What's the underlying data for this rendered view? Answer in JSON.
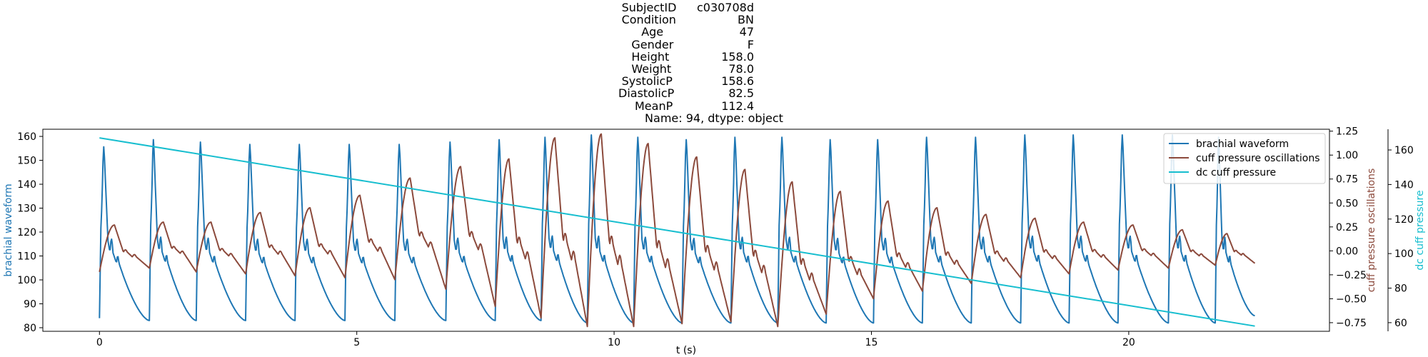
{
  "title_lines": [
    {
      "key": "SubjectID",
      "value": "c030708d"
    },
    {
      "key": "Condition",
      "value": "BN"
    },
    {
      "key": "Age",
      "value": "47"
    },
    {
      "key": "Gender",
      "value": "F"
    },
    {
      "key": "Height",
      "value": "158.0"
    },
    {
      "key": "Weight",
      "value": "78.0"
    },
    {
      "key": "SystolicP",
      "value": "158.6"
    },
    {
      "key": "DiastolicP",
      "value": "82.5"
    },
    {
      "key": "MeanP",
      "value": "112.4"
    }
  ],
  "title_footer": "Name: 94, dtype: object",
  "colors": {
    "brachial": "#1f77b4",
    "cuff_osc": "#8c4a3c",
    "dc_cuff": "#17becf",
    "axis": "#000000"
  },
  "chart_data": {
    "type": "line",
    "xlabel": "t (s)",
    "xlim": [
      -1.1,
      23.9
    ],
    "x_ticks": [
      0,
      5,
      10,
      15,
      20
    ],
    "legend": {
      "placement": "top-right",
      "entries": [
        "brachial waveform",
        "cuff pressure oscillations",
        "dc cuff pressure"
      ]
    },
    "grid": false,
    "axes": [
      {
        "id": "left",
        "label": "brachial waveform",
        "ylim": [
          78.5,
          163
        ],
        "ticks": [
          80,
          90,
          100,
          110,
          120,
          130,
          140,
          150,
          160
        ]
      },
      {
        "id": "right1",
        "label": "cuff pressure oscillations",
        "ylim": [
          -0.84,
          1.27
        ],
        "ticks": [
          -0.75,
          -0.5,
          -0.25,
          0.0,
          0.25,
          0.5,
          0.75,
          1.0,
          1.25
        ],
        "tick_labels": [
          "−0.75",
          "−0.50",
          "−0.25",
          "0.00",
          "0.25",
          "0.50",
          "0.75",
          "1.00",
          "1.25"
        ]
      },
      {
        "id": "right2",
        "label": "dc cuff pressure",
        "ylim": [
          55,
          172
        ],
        "ticks": [
          60,
          80,
          100,
          120,
          140,
          160
        ]
      }
    ],
    "series": [
      {
        "name": "brachial waveform",
        "axis": "left",
        "beat_times": [
          0.0,
          0.97,
          1.88,
          2.84,
          3.8,
          4.77,
          5.74,
          6.73,
          7.69,
          8.58,
          9.48,
          10.38,
          11.32,
          12.27,
          13.18,
          14.12,
          15.04,
          15.99,
          16.94,
          17.9,
          18.84,
          19.79,
          20.77,
          21.68,
          22.45
        ],
        "beat_peaks": [
          156,
          159,
          158,
          157,
          157,
          157,
          157,
          158,
          159,
          160,
          161,
          160,
          159,
          160,
          160,
          159,
          159,
          160,
          160,
          161,
          161,
          161,
          161,
          160
        ],
        "beat_troughs": [
          84,
          83,
          83,
          83,
          83,
          83,
          83,
          83,
          83,
          83,
          82,
          82,
          82,
          82,
          82,
          82,
          82,
          82,
          82,
          82,
          82,
          82,
          82,
          82,
          85
        ]
      },
      {
        "name": "cuff pressure oscillations",
        "axis": "right1",
        "beat_times": [
          0.0,
          0.97,
          1.88,
          2.84,
          3.8,
          4.77,
          5.74,
          6.73,
          7.69,
          8.58,
          9.48,
          10.38,
          11.32,
          12.27,
          13.18,
          14.12,
          15.04,
          15.99,
          16.94,
          17.9,
          18.84,
          19.79,
          20.77,
          21.68,
          22.45
        ],
        "beat_peaks": [
          0.27,
          0.3,
          0.3,
          0.4,
          0.45,
          0.58,
          0.76,
          0.88,
          0.96,
          1.18,
          1.22,
          1.12,
          0.98,
          0.85,
          0.72,
          0.62,
          0.52,
          0.45,
          0.38,
          0.34,
          0.3,
          0.27,
          0.22,
          0.18
        ],
        "beat_troughs": [
          -0.22,
          -0.18,
          -0.22,
          -0.24,
          -0.26,
          -0.28,
          -0.3,
          -0.4,
          -0.58,
          -0.7,
          -0.79,
          -0.79,
          -0.76,
          -0.74,
          -0.79,
          -0.66,
          -0.5,
          -0.42,
          -0.34,
          -0.28,
          -0.24,
          -0.2,
          -0.18,
          -0.15,
          -0.13
        ]
      },
      {
        "name": "dc cuff pressure",
        "axis": "right2",
        "x": [
          0,
          22.45
        ],
        "y": [
          167,
          58
        ]
      }
    ]
  }
}
